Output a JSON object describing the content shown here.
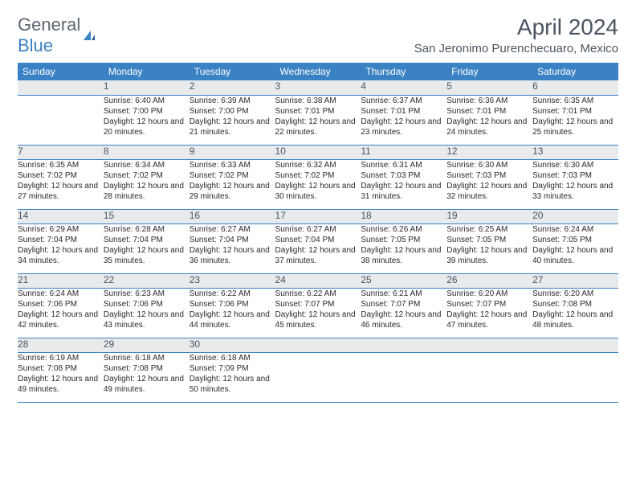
{
  "logo": {
    "line1": "General",
    "line2": "Blue"
  },
  "title": "April 2024",
  "location": "San Jeronimo Purenchecuaro, Mexico",
  "colors": {
    "header_bg": "#3b82c4",
    "header_text": "#ffffff",
    "daynum_bg": "#e8eaec",
    "body_text": "#2a2a2a",
    "title_text": "#4a5560",
    "rule": "#3b82c4"
  },
  "weekdays": [
    "Sunday",
    "Monday",
    "Tuesday",
    "Wednesday",
    "Thursday",
    "Friday",
    "Saturday"
  ],
  "weeks": [
    {
      "days": [
        null,
        {
          "n": "1",
          "sr": "6:40 AM",
          "ss": "7:00 PM",
          "dl": "12 hours and 20 minutes."
        },
        {
          "n": "2",
          "sr": "6:39 AM",
          "ss": "7:00 PM",
          "dl": "12 hours and 21 minutes."
        },
        {
          "n": "3",
          "sr": "6:38 AM",
          "ss": "7:01 PM",
          "dl": "12 hours and 22 minutes."
        },
        {
          "n": "4",
          "sr": "6:37 AM",
          "ss": "7:01 PM",
          "dl": "12 hours and 23 minutes."
        },
        {
          "n": "5",
          "sr": "6:36 AM",
          "ss": "7:01 PM",
          "dl": "12 hours and 24 minutes."
        },
        {
          "n": "6",
          "sr": "6:35 AM",
          "ss": "7:01 PM",
          "dl": "12 hours and 25 minutes."
        }
      ]
    },
    {
      "days": [
        {
          "n": "7",
          "sr": "6:35 AM",
          "ss": "7:02 PM",
          "dl": "12 hours and 27 minutes."
        },
        {
          "n": "8",
          "sr": "6:34 AM",
          "ss": "7:02 PM",
          "dl": "12 hours and 28 minutes."
        },
        {
          "n": "9",
          "sr": "6:33 AM",
          "ss": "7:02 PM",
          "dl": "12 hours and 29 minutes."
        },
        {
          "n": "10",
          "sr": "6:32 AM",
          "ss": "7:02 PM",
          "dl": "12 hours and 30 minutes."
        },
        {
          "n": "11",
          "sr": "6:31 AM",
          "ss": "7:03 PM",
          "dl": "12 hours and 31 minutes."
        },
        {
          "n": "12",
          "sr": "6:30 AM",
          "ss": "7:03 PM",
          "dl": "12 hours and 32 minutes."
        },
        {
          "n": "13",
          "sr": "6:30 AM",
          "ss": "7:03 PM",
          "dl": "12 hours and 33 minutes."
        }
      ]
    },
    {
      "days": [
        {
          "n": "14",
          "sr": "6:29 AM",
          "ss": "7:04 PM",
          "dl": "12 hours and 34 minutes."
        },
        {
          "n": "15",
          "sr": "6:28 AM",
          "ss": "7:04 PM",
          "dl": "12 hours and 35 minutes."
        },
        {
          "n": "16",
          "sr": "6:27 AM",
          "ss": "7:04 PM",
          "dl": "12 hours and 36 minutes."
        },
        {
          "n": "17",
          "sr": "6:27 AM",
          "ss": "7:04 PM",
          "dl": "12 hours and 37 minutes."
        },
        {
          "n": "18",
          "sr": "6:26 AM",
          "ss": "7:05 PM",
          "dl": "12 hours and 38 minutes."
        },
        {
          "n": "19",
          "sr": "6:25 AM",
          "ss": "7:05 PM",
          "dl": "12 hours and 39 minutes."
        },
        {
          "n": "20",
          "sr": "6:24 AM",
          "ss": "7:05 PM",
          "dl": "12 hours and 40 minutes."
        }
      ]
    },
    {
      "days": [
        {
          "n": "21",
          "sr": "6:24 AM",
          "ss": "7:06 PM",
          "dl": "12 hours and 42 minutes."
        },
        {
          "n": "22",
          "sr": "6:23 AM",
          "ss": "7:06 PM",
          "dl": "12 hours and 43 minutes."
        },
        {
          "n": "23",
          "sr": "6:22 AM",
          "ss": "7:06 PM",
          "dl": "12 hours and 44 minutes."
        },
        {
          "n": "24",
          "sr": "6:22 AM",
          "ss": "7:07 PM",
          "dl": "12 hours and 45 minutes."
        },
        {
          "n": "25",
          "sr": "6:21 AM",
          "ss": "7:07 PM",
          "dl": "12 hours and 46 minutes."
        },
        {
          "n": "26",
          "sr": "6:20 AM",
          "ss": "7:07 PM",
          "dl": "12 hours and 47 minutes."
        },
        {
          "n": "27",
          "sr": "6:20 AM",
          "ss": "7:08 PM",
          "dl": "12 hours and 48 minutes."
        }
      ]
    },
    {
      "days": [
        {
          "n": "28",
          "sr": "6:19 AM",
          "ss": "7:08 PM",
          "dl": "12 hours and 49 minutes."
        },
        {
          "n": "29",
          "sr": "6:18 AM",
          "ss": "7:08 PM",
          "dl": "12 hours and 49 minutes."
        },
        {
          "n": "30",
          "sr": "6:18 AM",
          "ss": "7:09 PM",
          "dl": "12 hours and 50 minutes."
        },
        null,
        null,
        null,
        null
      ]
    }
  ],
  "labels": {
    "sunrise": "Sunrise:",
    "sunset": "Sunset:",
    "daylight": "Daylight:"
  }
}
